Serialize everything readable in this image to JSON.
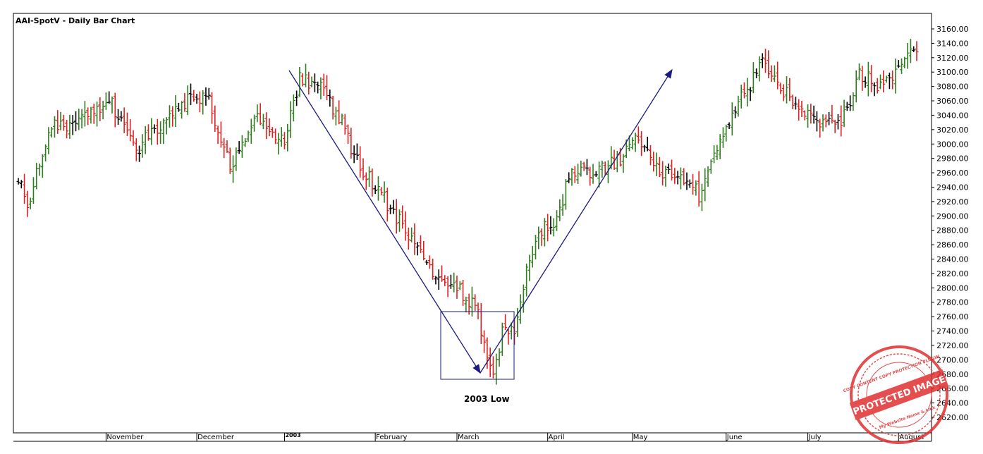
{
  "chart_data": {
    "type": "ohlc",
    "title": "AAI-SpotV - Daily Bar Chart",
    "xlabel": "",
    "ylabel": "",
    "ylim": [
      2605,
      3165
    ],
    "yticks": [
      "3160.00",
      "3140.00",
      "3120.00",
      "3100.00",
      "3080.00",
      "3060.00",
      "3040.00",
      "3020.00",
      "3000.00",
      "2980.00",
      "2960.00",
      "2940.00",
      "2920.00",
      "2900.00",
      "2880.00",
      "2860.00",
      "2840.00",
      "2820.00",
      "2800.00",
      "2780.00",
      "2760.00",
      "2740.00",
      "2720.00",
      "2700.00",
      "2680.00",
      "2660.00",
      "2640.00",
      "2620.00"
    ],
    "month_labels": [
      {
        "label": "November",
        "index": 29
      },
      {
        "label": "December",
        "index": 59
      },
      {
        "label": "2003",
        "index": 88
      },
      {
        "label": "February",
        "index": 118
      },
      {
        "label": "March",
        "index": 145
      },
      {
        "label": "April",
        "index": 175
      },
      {
        "label": "May",
        "index": 203
      },
      {
        "label": "June",
        "index": 234
      },
      {
        "label": "July",
        "index": 261
      },
      {
        "label": "August",
        "index": 291
      }
    ],
    "grid": false,
    "legend": "none",
    "colors": {
      "up": "#2e7d1e",
      "down": "#e02020",
      "neutral": "#000000",
      "annotation": "#1a1a80"
    },
    "waypoints": [
      [
        0,
        2950
      ],
      [
        3,
        2915
      ],
      [
        10,
        3020
      ],
      [
        20,
        3035
      ],
      [
        30,
        3060
      ],
      [
        40,
        2995
      ],
      [
        52,
        3055
      ],
      [
        62,
        3070
      ],
      [
        70,
        2970
      ],
      [
        78,
        3040
      ],
      [
        88,
        3005
      ],
      [
        93,
        3090
      ],
      [
        100,
        3075
      ],
      [
        106,
        3040
      ],
      [
        112,
        2975
      ],
      [
        120,
        2930
      ],
      [
        128,
        2880
      ],
      [
        135,
        2830
      ],
      [
        142,
        2810
      ],
      [
        148,
        2790
      ],
      [
        152,
        2760
      ],
      [
        155,
        2705
      ],
      [
        157,
        2690
      ],
      [
        160,
        2735
      ],
      [
        164,
        2745
      ],
      [
        168,
        2820
      ],
      [
        172,
        2880
      ],
      [
        178,
        2895
      ],
      [
        182,
        2955
      ],
      [
        190,
        2960
      ],
      [
        198,
        2975
      ],
      [
        205,
        3015
      ],
      [
        210,
        2965
      ],
      [
        218,
        2955
      ],
      [
        225,
        2930
      ],
      [
        233,
        3020
      ],
      [
        240,
        3070
      ],
      [
        246,
        3110
      ],
      [
        252,
        3080
      ],
      [
        258,
        3045
      ],
      [
        265,
        3030
      ],
      [
        272,
        3030
      ],
      [
        278,
        3095
      ],
      [
        286,
        3080
      ],
      [
        292,
        3115
      ],
      [
        296,
        3135
      ]
    ],
    "bars_total": 298,
    "seed": 20030313
  },
  "annotations": {
    "low_label": "2003 Low"
  },
  "stamp": {
    "text": "PROTECTED IMAGE",
    "ring_text": "COPY CONTENT COPY PROTECTION PLUGIN",
    "sub_text": "My Website Name & Link"
  }
}
